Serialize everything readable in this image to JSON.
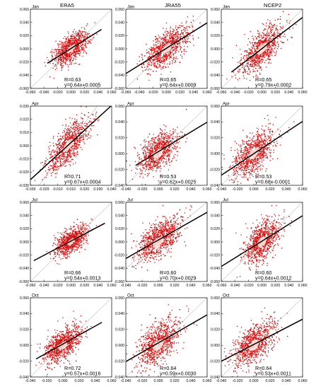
{
  "columns": [
    "ERA5",
    "JRA55",
    "NCEP2"
  ],
  "colors": {
    "points": "#e01010",
    "points_dark": "#8a0000",
    "center": "#ffd0c8",
    "fit": "#000000",
    "diag": "#999999"
  },
  "chart_data": [
    {
      "type": "scatter",
      "month": "Jan",
      "dataset": "ERA5",
      "xlim": [
        -0.06,
        0.06
      ],
      "ylim": [
        -0.06,
        0.06
      ],
      "xticks": [
        "-0.060",
        "-0.040",
        "-0.020",
        "0.000",
        "0.020",
        "0.040",
        "0.060"
      ],
      "yticks": [
        "-0.060",
        "-0.040",
        "-0.020",
        "0.000",
        "0.020",
        "0.040",
        "0.060"
      ],
      "n_points": 900,
      "spread_x": 0.013,
      "spread_y": 0.01,
      "R": "R=0.63",
      "fit": "y=0.64x+0.0005",
      "slope": 0.64,
      "intercept": 0.0005,
      "fit_x": [
        -0.035,
        0.045
      ],
      "diag": [
        -0.06,
        0.06
      ]
    },
    {
      "type": "scatter",
      "month": "Jan",
      "dataset": "JRA55",
      "xlim": [
        -0.06,
        0.06
      ],
      "ylim": [
        -0.06,
        0.06
      ],
      "xticks": [
        "-0.060",
        "-0.040",
        "-0.020",
        "0.000",
        "0.020",
        "0.040",
        "0.060"
      ],
      "yticks": [
        "-0.060",
        "-0.040",
        "-0.020",
        "0.000",
        "0.020",
        "0.040",
        "0.060"
      ],
      "n_points": 900,
      "spread_x": 0.016,
      "spread_y": 0.012,
      "R": "R=0.65",
      "fit": "y=0.64x+0.0009",
      "slope": 0.64,
      "intercept": 0.0009,
      "fit_x": [
        -0.06,
        0.06
      ],
      "diag": [
        -0.06,
        0.06
      ]
    },
    {
      "type": "scatter",
      "month": "Jan",
      "dataset": "NCEP2",
      "xlim": [
        -0.06,
        0.06
      ],
      "ylim": [
        -0.06,
        0.06
      ],
      "xticks": [
        "-0.060",
        "-0.040",
        "-0.020",
        "0.000",
        "0.020",
        "0.040",
        "0.060"
      ],
      "yticks": [
        "-0.060",
        "-0.040",
        "-0.020",
        "0.000",
        "0.020",
        "0.040",
        "0.060"
      ],
      "n_points": 900,
      "spread_x": 0.015,
      "spread_y": 0.014,
      "R": "R=0.65",
      "fit": "y=0.79x+0.0002",
      "slope": 0.79,
      "intercept": 0.0002,
      "fit_x": [
        -0.045,
        0.06
      ],
      "diag": [
        -0.06,
        0.06
      ]
    },
    {
      "type": "scatter",
      "month": "Apr",
      "dataset": "ERA5",
      "xlim": [
        -0.039,
        0.045
      ],
      "ylim": [
        -0.03,
        0.03
      ],
      "xticks": [
        "-0.039",
        "-0.029",
        "-0.010",
        "0.010",
        "0.020",
        "0.030",
        "0.040"
      ],
      "yticks": [
        "-0.030",
        "-0.020",
        "-0.010",
        "0.000",
        "0.010",
        "0.020",
        "0.030"
      ],
      "n_points": 900,
      "spread_x": 0.011,
      "spread_y": 0.007,
      "R": "R=0.71",
      "fit": "y=0.67x+0.0004",
      "slope": 0.67,
      "intercept": 0.0004,
      "fit_x": [
        -0.039,
        0.045
      ],
      "diag": [
        -0.039,
        0.045
      ]
    },
    {
      "type": "scatter",
      "month": "Apr",
      "dataset": "JRA55",
      "xlim": [
        -0.04,
        0.06
      ],
      "ylim": [
        -0.04,
        0.06
      ],
      "xticks": [
        "-0.040",
        "-0.020",
        "0.000",
        "0.020",
        "0.040",
        "0.060"
      ],
      "yticks": [
        "-0.040",
        "-0.020",
        "0.000",
        "0.020",
        "0.040",
        "0.060"
      ],
      "n_points": 900,
      "spread_x": 0.012,
      "spread_y": 0.011,
      "R": "R=0.53",
      "fit": "y=0.62x+0.0025",
      "slope": 0.62,
      "intercept": 0.0025,
      "fit_x": [
        -0.028,
        0.06
      ],
      "diag": [
        -0.04,
        0.06
      ]
    },
    {
      "type": "scatter",
      "month": "Apr",
      "dataset": "NCEP2",
      "xlim": [
        -0.04,
        0.06
      ],
      "ylim": [
        -0.04,
        0.06
      ],
      "xticks": [
        "-0.040",
        "-0.020",
        "0.000",
        "0.020",
        "0.040",
        "0.060"
      ],
      "yticks": [
        "-0.040",
        "-0.020",
        "0.000",
        "0.020",
        "0.040",
        "0.060"
      ],
      "n_points": 900,
      "spread_x": 0.013,
      "spread_y": 0.012,
      "R": "R=0.53",
      "fit": "y=0.68x-0.0001",
      "slope": 0.68,
      "intercept": -0.0001,
      "fit_x": [
        -0.04,
        0.06
      ],
      "diag": [
        -0.04,
        0.06
      ]
    },
    {
      "type": "scatter",
      "month": "Jul",
      "dataset": "ERA5",
      "xlim": [
        -0.06,
        0.06
      ],
      "ylim": [
        -0.06,
        0.06
      ],
      "xticks": [
        "-0.060",
        "-0.040",
        "-0.020",
        "0.000",
        "0.020",
        "0.040",
        "0.060"
      ],
      "yticks": [
        "-0.060",
        "-0.040",
        "-0.020",
        "0.000",
        "0.020",
        "0.040",
        "0.060"
      ],
      "n_points": 900,
      "spread_x": 0.011,
      "spread_y": 0.009,
      "R": "R=0.66",
      "fit": "y=0.54x+0.0013",
      "slope": 0.54,
      "intercept": 0.0013,
      "fit_x": [
        -0.055,
        0.05
      ],
      "diag": [
        -0.06,
        0.06
      ]
    },
    {
      "type": "scatter",
      "month": "Jul",
      "dataset": "JRA55",
      "xlim": [
        -0.04,
        0.06
      ],
      "ylim": [
        -0.06,
        0.06
      ],
      "xticks": [
        "-0.040",
        "-0.020",
        "0.000",
        "0.020",
        "0.040",
        "0.060"
      ],
      "yticks": [
        "-0.060",
        "-0.040",
        "-0.020",
        "0.000",
        "0.020",
        "0.040",
        "0.060"
      ],
      "n_points": 900,
      "spread_x": 0.013,
      "spread_y": 0.013,
      "R": "R=0.60",
      "fit": "y=0.70x+0.0029",
      "slope": 0.7,
      "intercept": 0.0029,
      "fit_x": [
        -0.04,
        0.06
      ],
      "diag": [
        -0.04,
        0.06
      ]
    },
    {
      "type": "scatter",
      "month": "Jul",
      "dataset": "NCEP2",
      "xlim": [
        -0.06,
        0.06
      ],
      "ylim": [
        -0.06,
        0.06
      ],
      "xticks": [
        "-0.060",
        "-0.040",
        "-0.020",
        "0.000",
        "0.020",
        "0.040",
        "0.060"
      ],
      "yticks": [
        "-0.060",
        "-0.040",
        "-0.020",
        "0.000",
        "0.020",
        "0.040",
        "0.060"
      ],
      "n_points": 900,
      "spread_x": 0.013,
      "spread_y": 0.014,
      "R": "R=0.60",
      "fit": "y=0.64x+0.0012",
      "slope": 0.64,
      "intercept": 0.0012,
      "fit_x": [
        -0.06,
        0.06
      ],
      "diag": [
        -0.06,
        0.06
      ]
    },
    {
      "type": "scatter",
      "month": "Oct",
      "dataset": "ERA5",
      "xlim": [
        -0.04,
        0.06
      ],
      "ylim": [
        -0.04,
        0.06
      ],
      "xticks": [
        "-0.040",
        "-0.020",
        "0.000",
        "0.020",
        "0.040",
        "0.060"
      ],
      "yticks": [
        "-0.040",
        "-0.020",
        "0.000",
        "0.020",
        "0.040",
        "0.060"
      ],
      "n_points": 900,
      "spread_x": 0.011,
      "spread_y": 0.009,
      "R": "R=0.72",
      "fit": "y=0.57x+0.0016",
      "slope": 0.57,
      "intercept": 0.0016,
      "fit_x": [
        -0.033,
        0.048
      ],
      "diag": [
        -0.04,
        0.06
      ]
    },
    {
      "type": "scatter",
      "month": "Oct",
      "dataset": "JRA55",
      "xlim": [
        -0.04,
        0.06
      ],
      "ylim": [
        -0.04,
        0.06
      ],
      "xticks": [
        "-0.040",
        "-0.020",
        "0.000",
        "0.020",
        "0.040",
        "0.060"
      ],
      "yticks": [
        "-0.040",
        "-0.020",
        "0.000",
        "0.020",
        "0.040",
        "0.060"
      ],
      "n_points": 900,
      "spread_x": 0.013,
      "spread_y": 0.012,
      "R": "R=0.64",
      "fit": "y=0.59x+0.0030",
      "slope": 0.59,
      "intercept": 0.003,
      "fit_x": [
        -0.04,
        0.06
      ],
      "diag": [
        -0.04,
        0.06
      ]
    },
    {
      "type": "scatter",
      "month": "Oct",
      "dataset": "NCEP2",
      "xlim": [
        -0.04,
        0.06
      ],
      "ylim": [
        -0.04,
        0.06
      ],
      "xticks": [
        "-0.040",
        "-0.020",
        "0.000",
        "0.020",
        "0.040",
        "0.060"
      ],
      "yticks": [
        "-0.040",
        "-0.020",
        "0.000",
        "0.020",
        "0.040",
        "0.060"
      ],
      "n_points": 900,
      "spread_x": 0.013,
      "spread_y": 0.012,
      "R": "R=0.64",
      "fit": "y=0.53x+0.0011",
      "slope": 0.53,
      "intercept": 0.0011,
      "fit_x": [
        -0.04,
        0.06
      ],
      "diag": [
        -0.04,
        0.06
      ]
    }
  ]
}
